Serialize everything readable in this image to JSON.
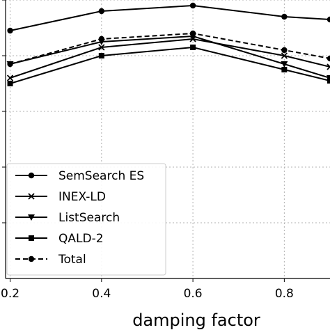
{
  "chart_data": {
    "type": "line",
    "title": "",
    "xlabel": "damping factor",
    "ylabel": "",
    "x": [
      0.2,
      0.4,
      0.6,
      0.8,
      0.9
    ],
    "x_ticks": [
      0.2,
      0.4,
      0.6,
      0.8
    ],
    "x_tick_labels": [
      "0.2",
      "0.4",
      "0.6",
      "0.8"
    ],
    "xlim": [
      0.19,
      0.9
    ],
    "ylim": [
      0,
      1
    ],
    "y_ticks": [
      0.2,
      0.4,
      0.6,
      0.8,
      1.0
    ],
    "grid": true,
    "legend_placement": "lower-left",
    "series": [
      {
        "name": "SemSearch ES",
        "marker": "circle",
        "dash": "solid",
        "values": [
          0.89,
          0.96,
          0.98,
          0.94,
          0.93
        ]
      },
      {
        "name": "INEX-LD",
        "marker": "x",
        "dash": "solid",
        "values": [
          0.72,
          0.83,
          0.86,
          0.8,
          0.76
        ]
      },
      {
        "name": "ListSearch",
        "marker": "triangle-down",
        "dash": "solid",
        "values": [
          0.77,
          0.85,
          0.87,
          0.77,
          0.72
        ]
      },
      {
        "name": "QALD-2",
        "marker": "square",
        "dash": "solid",
        "values": [
          0.7,
          0.8,
          0.83,
          0.75,
          0.71
        ]
      },
      {
        "name": "Total",
        "marker": "circle",
        "dash": "dashed",
        "values": [
          0.77,
          0.86,
          0.88,
          0.82,
          0.79
        ]
      }
    ]
  }
}
